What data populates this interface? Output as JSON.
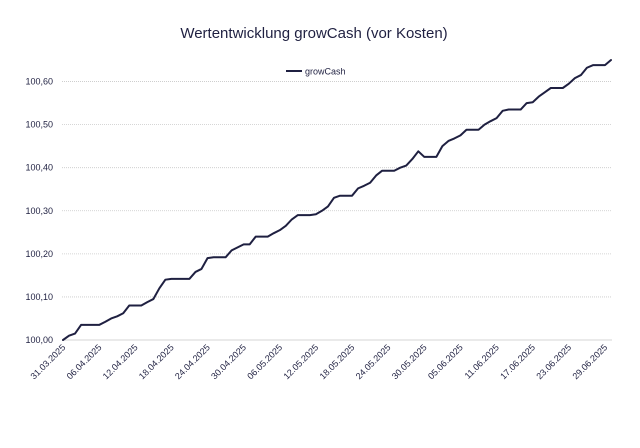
{
  "chart_data": {
    "type": "line",
    "title": "Wertentwicklung growCash (vor Kosten)",
    "xlabel": "",
    "ylabel": "",
    "ylim": [
      100.0,
      100.65
    ],
    "y_ticks": [
      "100,00",
      "100,10",
      "100,20",
      "100,30",
      "100,40",
      "100,50",
      "100,60"
    ],
    "y_tick_values": [
      100.0,
      100.1,
      100.2,
      100.3,
      100.4,
      100.5,
      100.6
    ],
    "x_tick_labels": [
      "31.03.2025",
      "06.04.2025",
      "12.04.2025",
      "18.04.2025",
      "24.04.2025",
      "30.04.2025",
      "06.05.2025",
      "12.05.2025",
      "18.05.2025",
      "24.05.2025",
      "30.05.2025",
      "05.06.2025",
      "11.06.2025",
      "17.06.2025",
      "23.06.2025",
      "29.06.2025"
    ],
    "legend_position": "top-center",
    "grid": true,
    "series": [
      {
        "name": "growCash",
        "color": "#1f2041",
        "x": [
          "31.03.2025",
          "01.04.2025",
          "02.04.2025",
          "03.04.2025",
          "04.04.2025",
          "05.04.2025",
          "06.04.2025",
          "07.04.2025",
          "08.04.2025",
          "09.04.2025",
          "10.04.2025",
          "11.04.2025",
          "12.04.2025",
          "13.04.2025",
          "14.04.2025",
          "15.04.2025",
          "16.04.2025",
          "17.04.2025",
          "18.04.2025",
          "19.04.2025",
          "20.04.2025",
          "21.04.2025",
          "22.04.2025",
          "23.04.2025",
          "24.04.2025",
          "25.04.2025",
          "26.04.2025",
          "27.04.2025",
          "28.04.2025",
          "29.04.2025",
          "30.04.2025",
          "01.05.2025",
          "02.05.2025",
          "03.05.2025",
          "04.05.2025",
          "05.05.2025",
          "06.05.2025",
          "07.05.2025",
          "08.05.2025",
          "09.05.2025",
          "10.05.2025",
          "11.05.2025",
          "12.05.2025",
          "13.05.2025",
          "14.05.2025",
          "15.05.2025",
          "16.05.2025",
          "17.05.2025",
          "18.05.2025",
          "19.05.2025",
          "20.05.2025",
          "21.05.2025",
          "22.05.2025",
          "23.05.2025",
          "24.05.2025",
          "25.05.2025",
          "26.05.2025",
          "27.05.2025",
          "28.05.2025",
          "29.05.2025",
          "30.05.2025",
          "31.05.2025",
          "01.06.2025",
          "02.06.2025",
          "03.06.2025",
          "04.06.2025",
          "05.06.2025",
          "06.06.2025",
          "07.06.2025",
          "08.06.2025",
          "09.06.2025",
          "10.06.2025",
          "11.06.2025",
          "12.06.2025",
          "13.06.2025",
          "14.06.2025",
          "15.06.2025",
          "16.06.2025",
          "17.06.2025",
          "18.06.2025",
          "19.06.2025",
          "20.06.2025",
          "21.06.2025",
          "22.06.2025",
          "23.06.2025",
          "24.06.2025",
          "25.06.2025",
          "26.06.2025",
          "27.06.2025",
          "28.06.2025",
          "29.06.2025",
          "30.06.2025"
        ],
        "values": [
          100.0,
          100.01,
          100.015,
          100.035,
          100.035,
          100.035,
          100.035,
          100.042,
          100.05,
          100.055,
          100.062,
          100.08,
          100.08,
          100.08,
          100.088,
          100.095,
          100.12,
          100.14,
          100.142,
          100.142,
          100.142,
          100.142,
          100.158,
          100.165,
          100.19,
          100.192,
          100.192,
          100.192,
          100.208,
          100.215,
          100.222,
          100.222,
          100.24,
          100.24,
          100.24,
          100.248,
          100.255,
          100.265,
          100.28,
          100.29,
          100.29,
          100.29,
          100.292,
          100.3,
          100.31,
          100.33,
          100.335,
          100.335,
          100.335,
          100.352,
          100.358,
          100.365,
          100.382,
          100.393,
          100.393,
          100.393,
          100.4,
          100.405,
          100.42,
          100.438,
          100.425,
          100.425,
          100.425,
          100.45,
          100.462,
          100.468,
          100.475,
          100.488,
          100.488,
          100.488,
          100.5,
          100.508,
          100.515,
          100.532,
          100.535,
          100.535,
          100.535,
          100.55,
          100.552,
          100.565,
          100.575,
          100.585,
          100.585,
          100.585,
          100.595,
          100.608,
          100.615,
          100.632,
          100.638,
          100.638,
          100.638,
          100.65
        ]
      }
    ]
  }
}
